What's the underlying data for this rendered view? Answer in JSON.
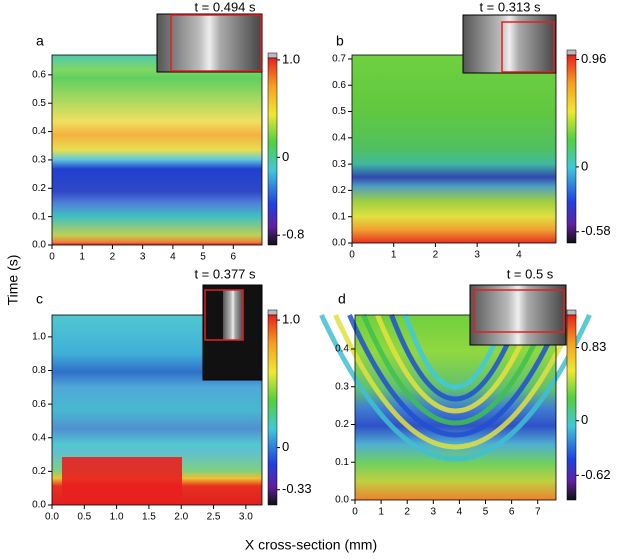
{
  "y_label": "Time (s)",
  "x_label": "X cross-section (mm)",
  "panels": [
    {
      "letter": "a",
      "time_label": "t = 0.494 s",
      "xlim": [
        0,
        6.95
      ],
      "xticks": [
        0,
        1,
        2,
        3,
        4,
        5,
        6
      ],
      "ylim": [
        0,
        0.67
      ],
      "yticks": [
        {
          "value": 0,
          "label": "0.0"
        },
        {
          "value": 0.1,
          "label": "0.1"
        },
        {
          "value": 0.2,
          "label": "0.2"
        },
        {
          "value": 0.3,
          "label": "0.3"
        },
        {
          "value": 0.4,
          "label": "0.4"
        },
        {
          "value": 0.5,
          "label": "0.5"
        },
        {
          "value": 0.6,
          "label": "0.6"
        }
      ],
      "clim": [
        -0.9,
        1.02
      ],
      "cticks": [
        {
          "value": 1,
          "label": "1.0"
        },
        0,
        -0.8
      ]
    },
    {
      "letter": "b",
      "time_label": "t = 0.313 s",
      "xlim": [
        0,
        4.89
      ],
      "xticks": [
        0,
        1,
        2,
        3,
        4
      ],
      "ylim": [
        0,
        0.715
      ],
      "yticks": [
        {
          "value": 0,
          "label": "0.0"
        },
        {
          "value": 0.1,
          "label": "0.1"
        },
        {
          "value": 0.2,
          "label": "0.2"
        },
        {
          "value": 0.3,
          "label": "0.3"
        },
        {
          "value": 0.4,
          "label": "0.4"
        },
        {
          "value": 0.5,
          "label": "0.5"
        },
        {
          "value": 0.6,
          "label": "0.6"
        },
        {
          "value": 0.7,
          "label": "0.7"
        }
      ],
      "clim": [
        -0.68,
        1.0
      ],
      "cticks": [
        0.96,
        0,
        -0.58
      ]
    },
    {
      "letter": "c",
      "time_label": "t = 0.377 s",
      "xlim": [
        0,
        3.25
      ],
      "xticks": [
        {
          "value": 0,
          "label": "0.0"
        },
        0.5,
        {
          "value": 1,
          "label": "1.0"
        },
        1.5,
        {
          "value": 2,
          "label": "2.0"
        },
        2.5,
        {
          "value": 3,
          "label": "3.0"
        }
      ],
      "ylim": [
        0,
        1.13
      ],
      "yticks": [
        {
          "value": 0,
          "label": "0.0"
        },
        0.2,
        0.4,
        0.6,
        0.8,
        {
          "value": 1,
          "label": "1.0"
        }
      ],
      "clim": [
        -0.45,
        1.04
      ],
      "cticks": [
        {
          "value": 1,
          "label": "1.0"
        },
        0,
        -0.33
      ]
    },
    {
      "letter": "d",
      "time_label": "t = 0.5 s",
      "xlim": [
        0,
        7.7
      ],
      "xticks": [
        0,
        1,
        2,
        3,
        4,
        5,
        6,
        7
      ],
      "ylim": [
        0,
        0.49
      ],
      "yticks": [
        {
          "value": 0,
          "label": "0.0"
        },
        0.1,
        0.2,
        0.3,
        0.4
      ],
      "clim": [
        -0.9,
        1.2
      ],
      "cticks": [
        0.83,
        0,
        -0.62
      ]
    }
  ]
}
